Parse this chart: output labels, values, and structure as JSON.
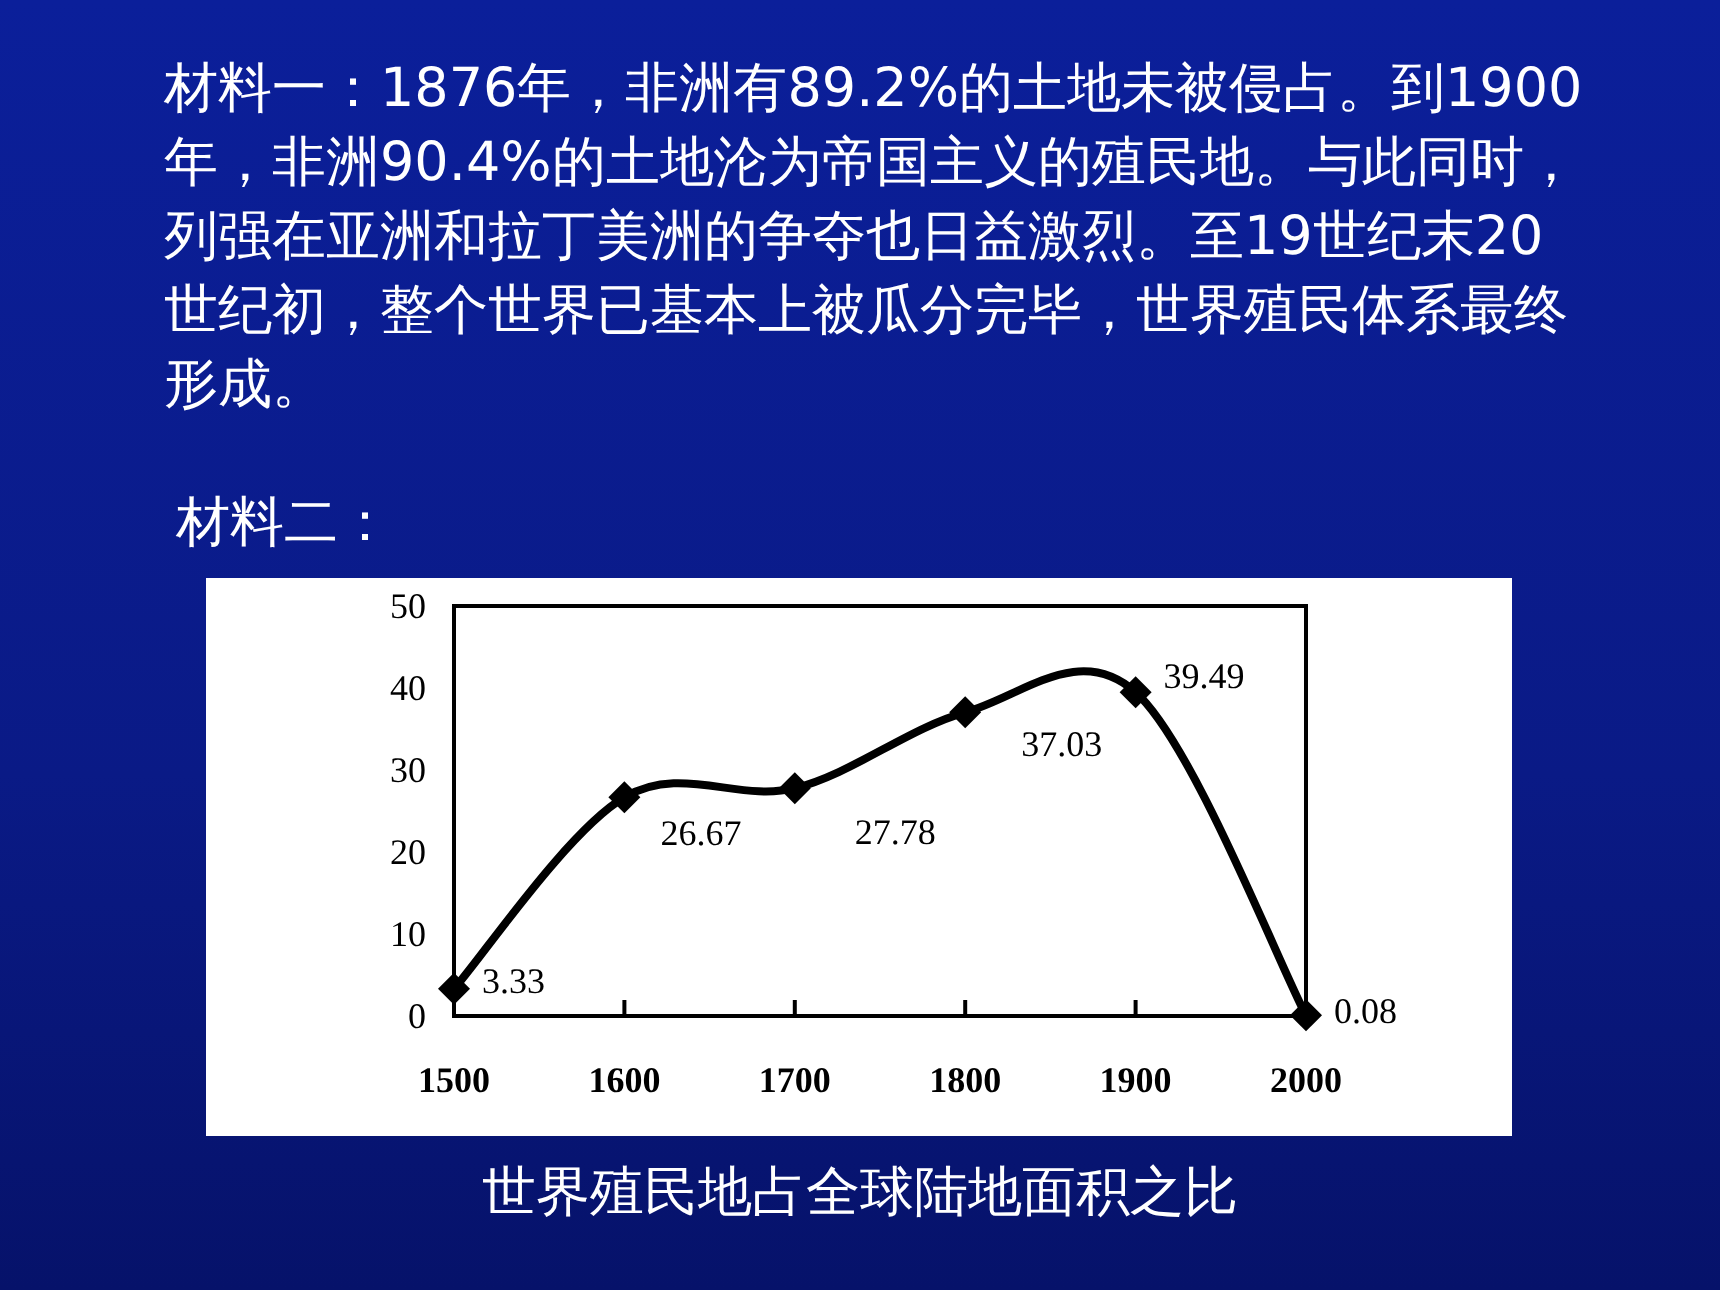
{
  "chart_data": {
    "type": "line",
    "title": "世界殖民地占全球陆地面积之比",
    "annotations": [
      "材料一：1876年，非洲有89.2%的土地未被侵占。到1900年，非洲90.4%的土地沦为帝国主义的殖民地。与此同时，列强在亚洲和拉丁美洲的争夺也日益激烈。至19世纪末20世纪初，整个世界已基本上被瓜分完毕，世界殖民体系最终形成。",
      "材料二："
    ],
    "x": [
      1500,
      1600,
      1700,
      1800,
      1900,
      2000
    ],
    "series": [
      {
        "color": "#000000",
        "values": [
          3.33,
          26.67,
          27.78,
          37.03,
          39.49,
          0.08
        ]
      }
    ],
    "xlim": [
      1500,
      2000
    ],
    "xticks": [
      1500,
      1600,
      1700,
      1800,
      1900,
      2000
    ],
    "ylim": [
      0,
      50
    ],
    "yticks": [
      0,
      10,
      20,
      30,
      40,
      50
    ],
    "marker": "diamond",
    "data_labels": true,
    "grid": false
  }
}
